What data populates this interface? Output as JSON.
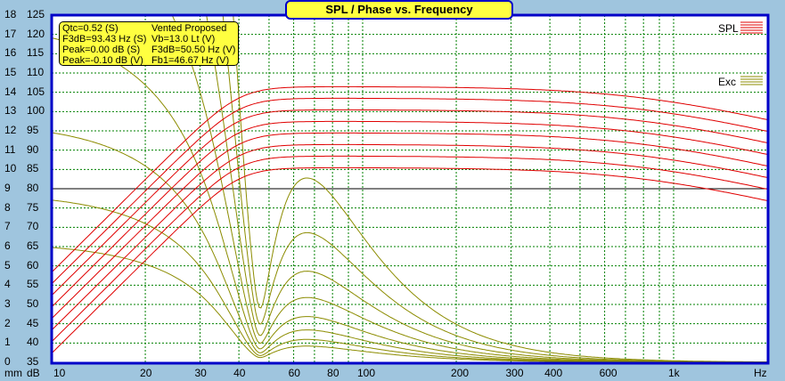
{
  "chart_data": {
    "type": "line",
    "title": "SPL / Phase vs. Frequency",
    "x_unit": "Hz",
    "x_scale": "log",
    "xlim": [
      10,
      2000
    ],
    "x_ticks": [
      "10",
      "20",
      "30",
      "40",
      "60",
      "80",
      "100",
      "200",
      "300",
      "400",
      "600",
      "1k"
    ],
    "x_tick_values": [
      10,
      20,
      30,
      40,
      60,
      80,
      100,
      200,
      300,
      400,
      600,
      1000
    ],
    "y_left_unit": "dB",
    "ylim": [
      35,
      125
    ],
    "y_ticks_db": [
      "125",
      "120",
      "115",
      "110",
      "105",
      "100",
      "95",
      "90",
      "85",
      "80",
      "75",
      "70",
      "65",
      "60",
      "55",
      "50",
      "45",
      "40",
      "35"
    ],
    "y_unit_mm": "mm",
    "ylim_mm": [
      0,
      18
    ],
    "y_ticks_mm": [
      "18",
      "17",
      "16",
      "15",
      "14",
      "13",
      "12",
      "11",
      "10",
      "9",
      "8",
      "7",
      "6",
      "5",
      "4",
      "3",
      "2",
      "1",
      "0"
    ],
    "grid": true,
    "reference_line_db": 80,
    "legend_position": "top-right",
    "series": [
      {
        "name": "SPL",
        "color": "#e00000",
        "plateau_levels_db": [
          85.5,
          88.5,
          91.5,
          94.5,
          97.5,
          100.5,
          103.5,
          106.5
        ]
      },
      {
        "name": "Exc",
        "color": "#8c8c00",
        "peak_excursion_mm_at_60hz": [
          0.8,
          1.13,
          1.6,
          2.26,
          3.2,
          4.5,
          6.4,
          9.1
        ]
      }
    ],
    "fb_hz": 46.67
  },
  "info": {
    "col1": [
      "Qtc=0.52 (S)",
      "F3dB=93.43 Hz (S)",
      "Peak=0.00 dB (S)",
      "Peak=-0.10 dB (V)"
    ],
    "col2": [
      "Vented Proposed",
      "Vb=13.0 Lt (V)",
      "F3dB=50.50 Hz (V)",
      "Fb1=46.67 Hz (V)"
    ]
  },
  "colors": {
    "background": "#9fc5de",
    "plot_border": "#0000c8",
    "grid": "#008000",
    "title_bg": "#ffff40"
  }
}
